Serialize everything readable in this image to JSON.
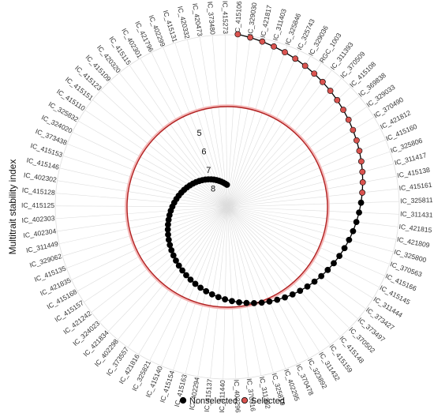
{
  "chart_data": {
    "type": "scatter",
    "subtype": "polar-spiral",
    "title": "",
    "ylabel": "Multitrait stability index",
    "radial_ticks": [
      5,
      6,
      7,
      8
    ],
    "threshold_circle": true,
    "grid": true,
    "legend_position": "bottom",
    "legend": [
      {
        "name": "Nonselected",
        "fill": "#000000",
        "stroke": "#000000"
      },
      {
        "name": "Selected",
        "fill": "#d9534f",
        "stroke": "#000000"
      }
    ],
    "colors": {
      "threshold": "#b22222",
      "grid": "#dddddd",
      "selected": "#d9534f",
      "nonselected": "#000000"
    },
    "selected_count": 20,
    "genotypes": [
      "IC_415106",
      "IC_329030",
      "IC_421817",
      "IC_311403",
      "IC_325846",
      "IC_325743",
      "IC_329036",
      "RGC_1003",
      "IC_311393",
      "IC_370509",
      "IC_415108",
      "IC_369838",
      "IC_329033",
      "IC_370490",
      "IC_421812",
      "IC_415160",
      "IC_325806",
      "IC_311417",
      "IC_415138",
      "IC_415161",
      "IC_325811",
      "IC_311431",
      "IC_421815",
      "IC_421809",
      "IC_325800",
      "IC_370563",
      "IC_415166",
      "IC_415145",
      "IC_311444",
      "IC_373427",
      "IC_373497",
      "IC_370502",
      "IC_415148",
      "IC_415159",
      "IC_311432",
      "IC_323892",
      "IC_370478",
      "IC_402295",
      "IC_325819",
      "IC_311392",
      "IC_370516",
      "IC_402296",
      "IC_311440",
      "IC_415137",
      "IC_402294",
      "IC_415163",
      "IC_415154",
      "IC_415140",
      "IC_325821",
      "IC_421816",
      "IC_373557",
      "IC_402298",
      "IC_421834",
      "IC_324023",
      "IC_421242",
      "IC_415157",
      "IC_415168",
      "IC_421835",
      "IC_415135",
      "IC_329062",
      "IC_311449",
      "IC_402304",
      "IC_402303",
      "IC_415125",
      "IC_415128",
      "IC_402302",
      "IC_415146",
      "IC_415153",
      "IC_373438",
      "IC_324020",
      "IC_325832",
      "IC_415110",
      "IC_415151",
      "IC_415123",
      "IC_415109",
      "IC_420320",
      "IC_415115",
      "IC_402301",
      "IC_421796",
      "IC_402299",
      "IC_415131",
      "IC_420332",
      "IC_420473",
      "IC_373480",
      "IC_415273"
    ]
  }
}
